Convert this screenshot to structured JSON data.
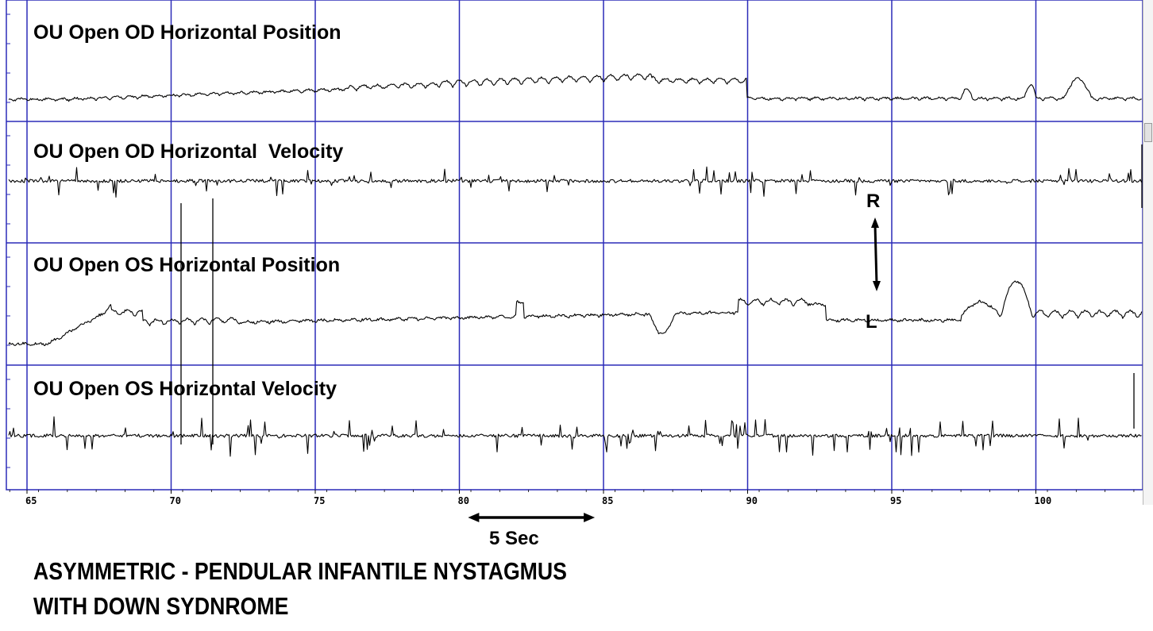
{
  "chart_data": {
    "type": "line",
    "xlim": [
      64.4,
      103.8
    ],
    "x_ticks": [
      65,
      70,
      75,
      80,
      85,
      90,
      95,
      100
    ],
    "x_tick_labels": [
      "65",
      "70",
      "75",
      "80",
      "85",
      "90",
      "95",
      "100"
    ],
    "grid": true,
    "colors": {
      "trace": "#000000",
      "grid": "#2b2bb8",
      "background": "#ffffff"
    },
    "panels": [
      {
        "title": "OU Open OD Horizontal Position",
        "kind": "position",
        "eye": "OD"
      },
      {
        "title": "OU Open OD Horizontal  Velocity",
        "kind": "velocity",
        "eye": "OD"
      },
      {
        "title": "OU Open OS Horizontal Position",
        "kind": "position",
        "eye": "OS"
      },
      {
        "title": "OU Open OS Horizontal Velocity",
        "kind": "velocity",
        "eye": "OS"
      }
    ],
    "annotations": {
      "direction_top": "R",
      "direction_bottom": "L",
      "time_scale_label": "5 Sec",
      "time_scale_span": [
        80.3,
        84.7
      ]
    }
  },
  "caption": {
    "line1": "ASYMMETRIC - PENDULAR INFANTILE NYSTAGMUS",
    "line2": "WITH DOWN SYDNROME"
  }
}
